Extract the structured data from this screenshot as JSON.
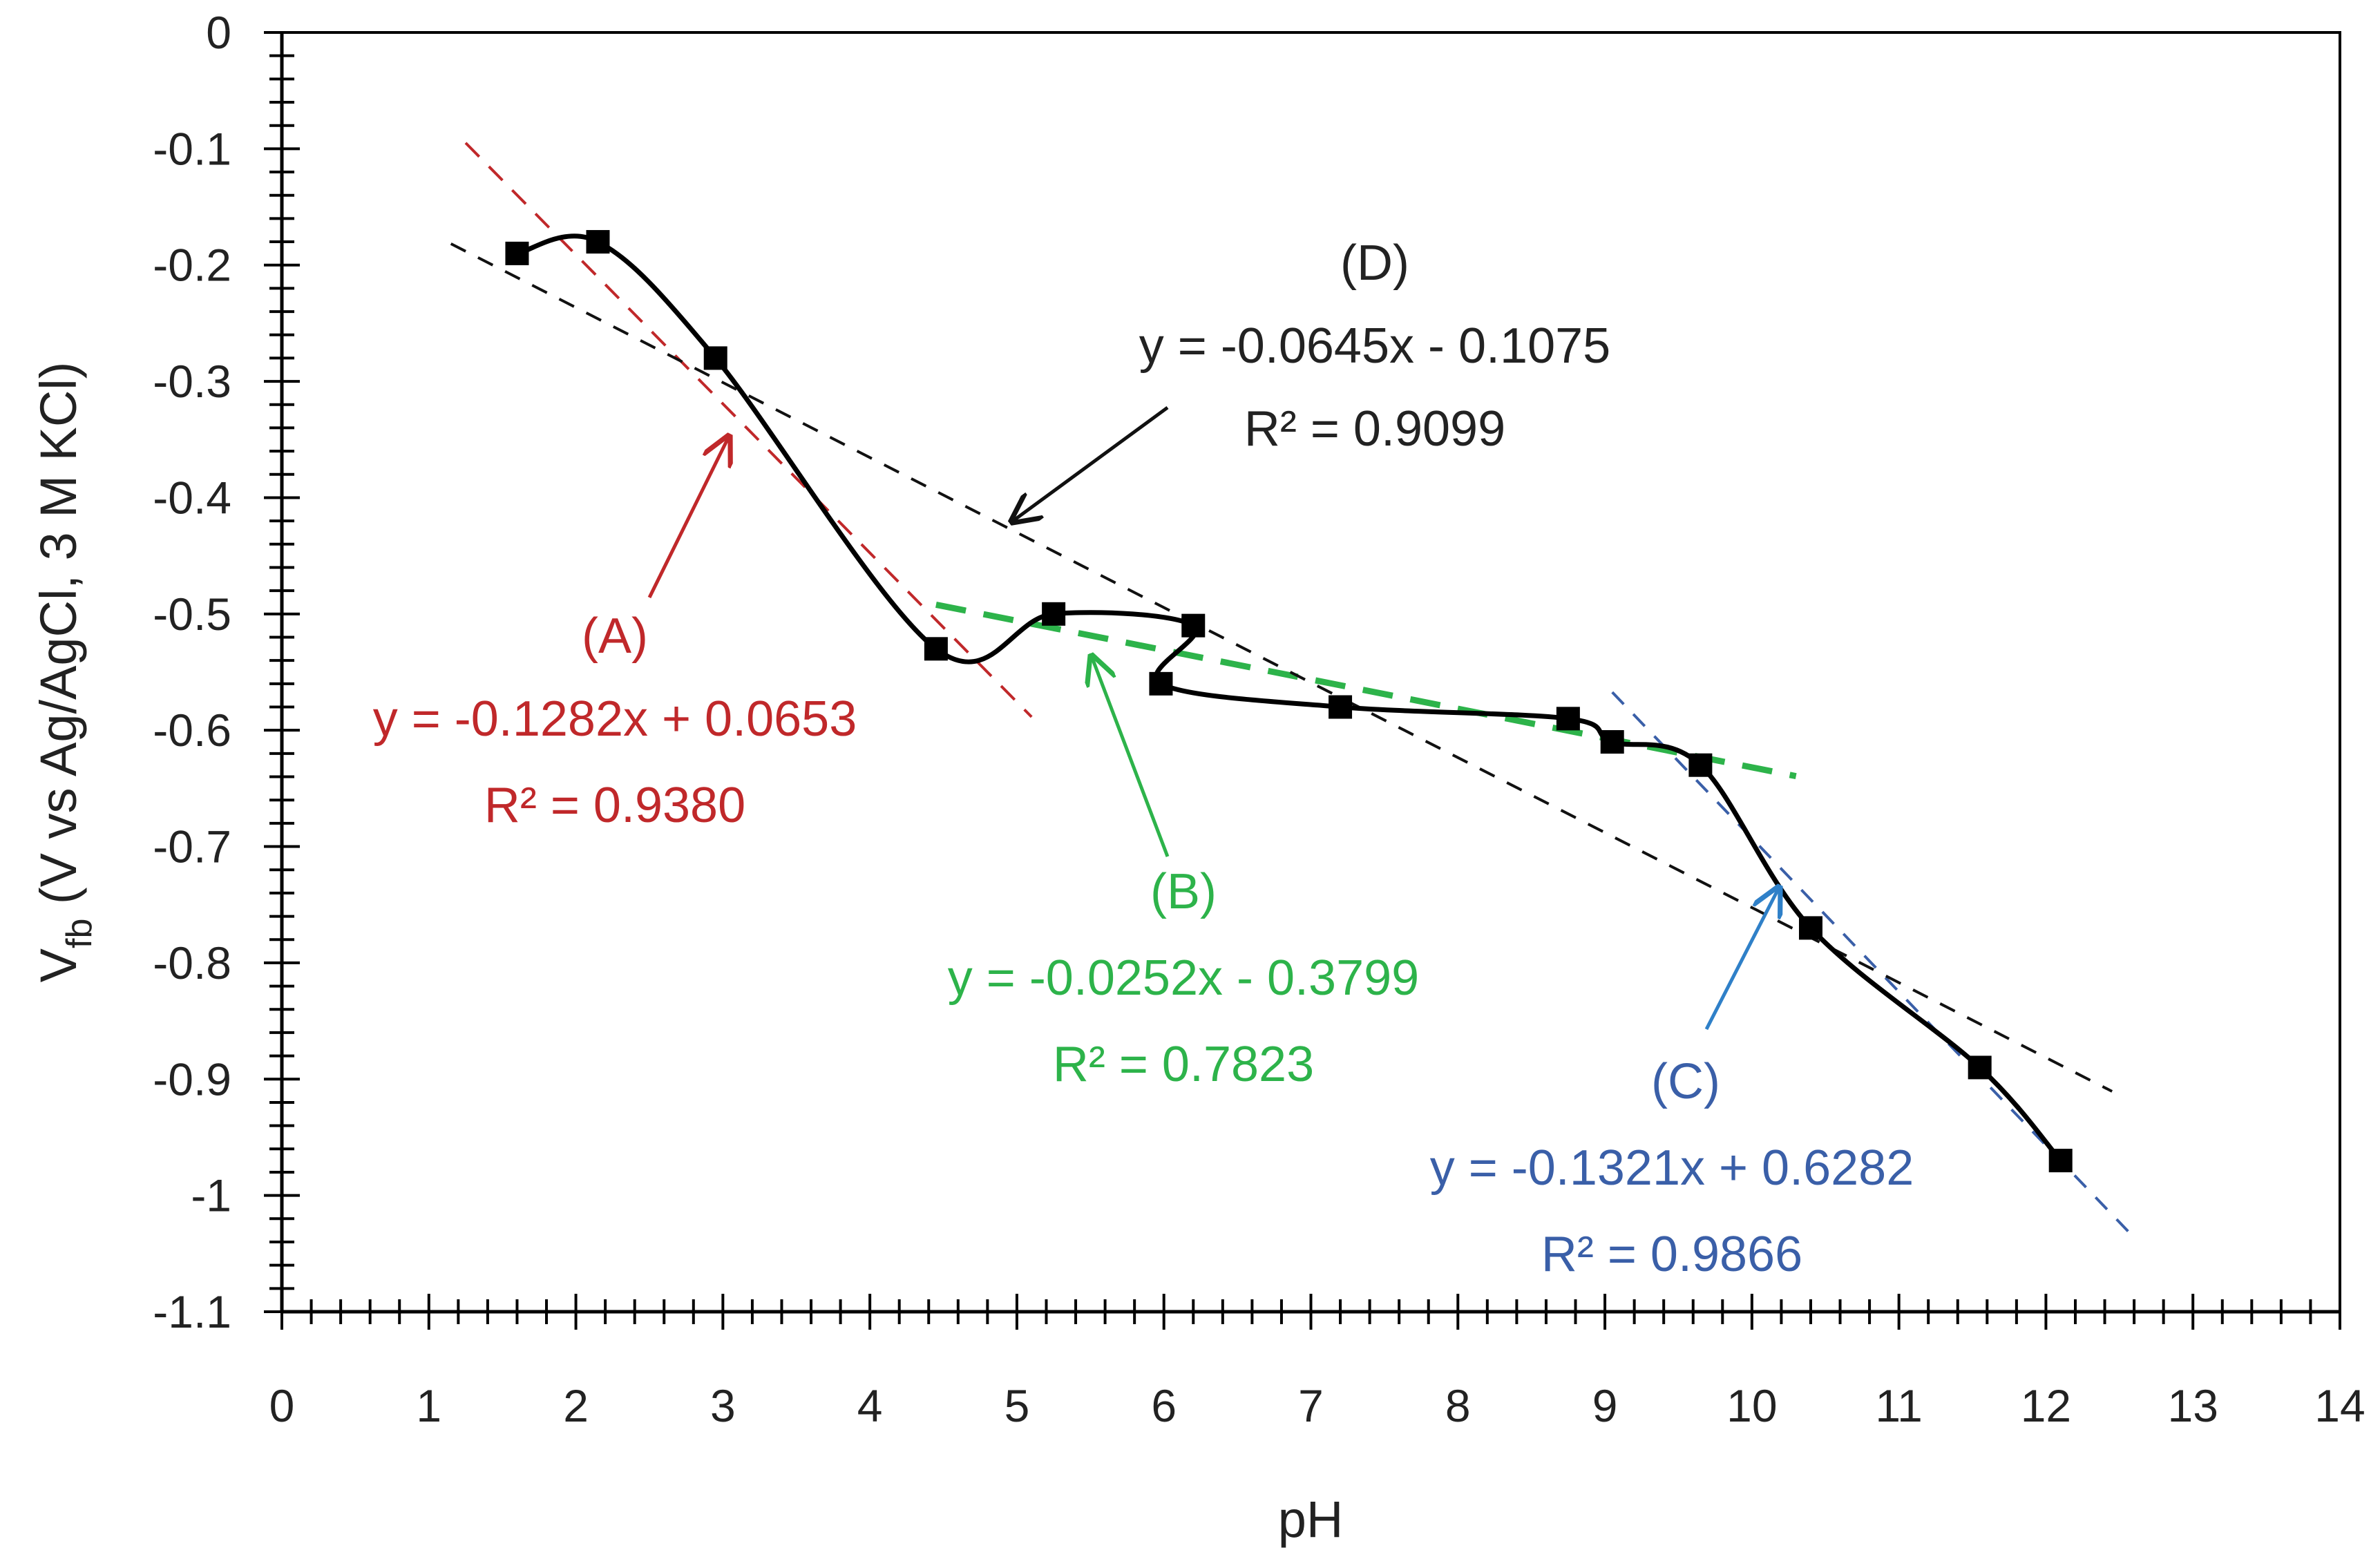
{
  "chart_data": {
    "type": "scatter",
    "title": "",
    "xlabel": "pH",
    "ylabel_main": "V",
    "ylabel_sub": "fb",
    "ylabel_rest": " (V vs Ag/AgCl, 3 M KCl)",
    "xlim": [
      0,
      14
    ],
    "ylim": [
      -1.1,
      0
    ],
    "x_ticks": [
      0,
      1,
      2,
      3,
      4,
      5,
      6,
      7,
      8,
      9,
      10,
      11,
      12,
      13,
      14
    ],
    "x_tick_labels": [
      "0",
      "1",
      "2",
      "3",
      "4",
      "5",
      "6",
      "7",
      "8",
      "9",
      "10",
      "11",
      "12",
      "13",
      "14"
    ],
    "y_ticks": [
      0,
      -0.1,
      -0.2,
      -0.3,
      -0.4,
      -0.5,
      -0.6,
      -0.7,
      -0.8,
      -0.9,
      -1,
      -1.1
    ],
    "y_tick_labels": [
      "0",
      "-0.1",
      "-0.2",
      "-0.3",
      "-0.4",
      "-0.5",
      "-0.6",
      "-0.7",
      "-0.8",
      "-0.9",
      "-1",
      "-1.1"
    ],
    "grid": false,
    "series": [
      {
        "name": "Vfb",
        "color": "#000000",
        "x": [
          1.6,
          2.15,
          2.95,
          4.45,
          5.25,
          6.2,
          5.98,
          7.2,
          8.75,
          9.05,
          9.65,
          10.4,
          11.55,
          12.1
        ],
        "y": [
          -0.19,
          -0.18,
          -0.28,
          -0.53,
          -0.5,
          -0.51,
          -0.56,
          -0.58,
          -0.59,
          -0.61,
          -0.63,
          -0.77,
          -0.89,
          -0.97
        ]
      }
    ],
    "fits": [
      {
        "id": "A",
        "slope": -0.1282,
        "intercept": 0.0653,
        "x_range": [
          1.25,
          5.1
        ],
        "color": "#c0282a",
        "dash": "28 20",
        "width": 4
      },
      {
        "id": "B",
        "slope": -0.0252,
        "intercept": -0.3799,
        "x_range": [
          4.45,
          10.3
        ],
        "color": "#2db34a",
        "dash": "44 26",
        "width": 9
      },
      {
        "id": "C",
        "slope": -0.1321,
        "intercept": 0.6282,
        "x_range": [
          9.05,
          12.6
        ],
        "color": "#3a5fa8",
        "dash": "24 20",
        "width": 4
      },
      {
        "id": "D",
        "slope": -0.0645,
        "intercept": -0.1075,
        "x_range": [
          1.15,
          12.45
        ],
        "color": "#111111",
        "dash": "24 20",
        "width": 4
      }
    ],
    "annotations": [
      {
        "id": "A",
        "label": "(A)",
        "equation": "y = -0.1282x + 0.0653",
        "r2": "R² = 0.9380",
        "color": "#c0282a"
      },
      {
        "id": "B",
        "label": "(B)",
        "equation": "y = -0.0252x - 0.3799",
        "r2": "R² = 0.7823",
        "color": "#2db34a"
      },
      {
        "id": "C",
        "label": "(C)",
        "equation": "y = -0.1321x + 0.6282",
        "r2": "R² = 0.9866",
        "color": "#3a5fa8"
      },
      {
        "id": "D",
        "label": "(D)",
        "equation": "y = -0.0645x - 0.1075",
        "r2": "R² = 0.9099",
        "color": "#222222"
      }
    ],
    "arrow_colors": {
      "A": "#c0282a",
      "B": "#2db34a",
      "C": "#2f80c8",
      "D": "#111111"
    }
  }
}
